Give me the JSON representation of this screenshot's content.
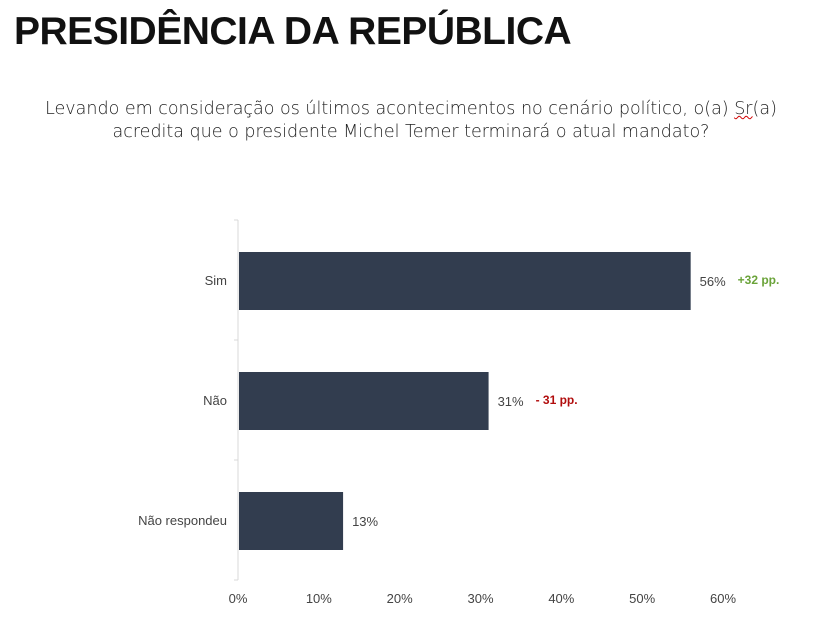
{
  "page": {
    "title": "PRESIDÊNCIA DA REPÚBLICA",
    "question_line1_pre": "Levando em consideração os últimos acontecimentos no cenário político, o(a) ",
    "question_line1_sr": "Sr",
    "question_line1_post": "(a)",
    "question_line2": "acredita que o presidente Michel Temer terminará o atual mandato?"
  },
  "colors": {
    "bar": "#323d4f",
    "positive": "#6aa339",
    "negative": "#b10d0d",
    "axis": "#d9d9d9"
  },
  "chart_data": {
    "type": "bar",
    "orientation": "horizontal",
    "title": "Levando em consideração os últimos acontecimentos no cenário político, o(a) Sr(a) acredita que o presidente Michel Temer terminará o atual mandato?",
    "categories": [
      "Sim",
      "Não",
      "Não respondeu"
    ],
    "values": [
      56,
      31,
      13
    ],
    "value_labels": [
      "56%",
      "31%",
      "13%"
    ],
    "annotations": [
      {
        "category": "Sim",
        "text": "+32 pp.",
        "sign": "positive"
      },
      {
        "category": "Não",
        "text": "- 31 pp.",
        "sign": "negative"
      }
    ],
    "xlim": [
      0,
      60
    ],
    "xticks": [
      0,
      10,
      20,
      30,
      40,
      50,
      60
    ],
    "xtick_labels": [
      "0%",
      "10%",
      "20%",
      "30%",
      "40%",
      "50%",
      "60%"
    ],
    "xlabel": "",
    "ylabel": "",
    "grid": false,
    "legend": "none"
  }
}
